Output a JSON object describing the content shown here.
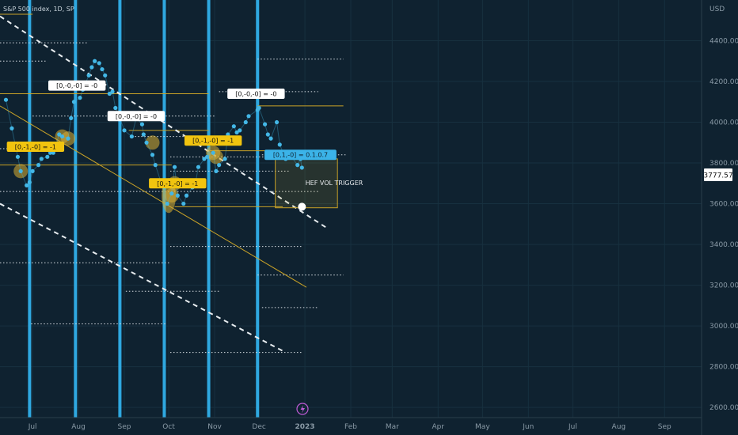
{
  "header": {
    "symbol": "S&P 500 index, 1D, SP"
  },
  "axis": {
    "currency": "USD",
    "last_price": "3777.57"
  },
  "colors": {
    "bg": "#0f2230",
    "cycle": "#2fa8e0",
    "price": "#43b7e6",
    "trend": "#c9a227",
    "label_yellow": "#f1c40f",
    "label_blue": "#3bb3e8"
  },
  "chart_data": {
    "type": "line",
    "x_ticks": [
      "Jul",
      "Aug",
      "Sep",
      "Oct",
      "Nov",
      "Dec",
      "2023",
      "Feb",
      "Mar",
      "Apr",
      "May",
      "Jun",
      "Jul",
      "Aug",
      "Sep"
    ],
    "y_ticks": [
      2600,
      2800,
      3000,
      3200,
      3400,
      3600,
      3800,
      4000,
      4200,
      4400
    ],
    "ylim": [
      2550,
      4600
    ],
    "xlim": [
      "2022-06-09",
      "2023-09-26"
    ],
    "series": [
      {
        "values": [
          [
            "2022-06-13",
            4110
          ],
          [
            "2022-06-17",
            3970
          ],
          [
            "2022-06-21",
            3830
          ],
          [
            "2022-06-23",
            3760
          ],
          [
            "2022-06-27",
            3690
          ],
          [
            "2022-06-29",
            3705
          ],
          [
            "2022-07-01",
            3760
          ],
          [
            "2022-07-05",
            3790
          ],
          [
            "2022-07-07",
            3820
          ],
          [
            "2022-07-11",
            3830
          ],
          [
            "2022-07-13",
            3850
          ],
          [
            "2022-07-15",
            3850
          ],
          [
            "2022-07-19",
            3940
          ],
          [
            "2022-07-21",
            3930
          ],
          [
            "2022-07-25",
            3920
          ],
          [
            "2022-07-27",
            4020
          ],
          [
            "2022-07-29",
            4100
          ],
          [
            "2022-08-02",
            4120
          ],
          [
            "2022-08-04",
            4160
          ],
          [
            "2022-08-08",
            4230
          ],
          [
            "2022-08-10",
            4270
          ],
          [
            "2022-08-12",
            4300
          ],
          [
            "2022-08-15",
            4290
          ],
          [
            "2022-08-17",
            4260
          ],
          [
            "2022-08-19",
            4230
          ],
          [
            "2022-08-22",
            4140
          ],
          [
            "2022-08-24",
            4150
          ],
          [
            "2022-08-26",
            4070
          ],
          [
            "2022-08-29",
            4020
          ],
          [
            "2022-09-01",
            3960
          ],
          [
            "2022-09-06",
            3930
          ],
          [
            "2022-09-09",
            4020
          ],
          [
            "2022-09-13",
            3990
          ],
          [
            "2022-09-14",
            3940
          ],
          [
            "2022-09-16",
            3900
          ],
          [
            "2022-09-20",
            3840
          ],
          [
            "2022-09-22",
            3790
          ],
          [
            "2022-09-26",
            3700
          ],
          [
            "2022-09-28",
            3680
          ],
          [
            "2022-09-30",
            3600
          ],
          [
            "2022-10-03",
            3650
          ],
          [
            "2022-10-05",
            3780
          ],
          [
            "2022-10-07",
            3640
          ],
          [
            "2022-10-11",
            3600
          ],
          [
            "2022-10-13",
            3640
          ],
          [
            "2022-10-17",
            3680
          ],
          [
            "2022-10-19",
            3700
          ],
          [
            "2022-10-21",
            3780
          ],
          [
            "2022-10-25",
            3820
          ],
          [
            "2022-10-27",
            3830
          ],
          [
            "2022-10-31",
            3850
          ],
          [
            "2022-11-02",
            3760
          ],
          [
            "2022-11-04",
            3790
          ],
          [
            "2022-11-08",
            3820
          ],
          [
            "2022-11-10",
            3940
          ],
          [
            "2022-11-14",
            3980
          ],
          [
            "2022-11-16",
            3950
          ],
          [
            "2022-11-18",
            3960
          ],
          [
            "2022-11-22",
            4000
          ],
          [
            "2022-11-24",
            4030
          ],
          [
            "2022-11-30",
            4060
          ],
          [
            "2022-12-01",
            4070
          ],
          [
            "2022-12-05",
            3990
          ],
          [
            "2022-12-07",
            3940
          ],
          [
            "2022-12-09",
            3920
          ],
          [
            "2022-12-13",
            4000
          ],
          [
            "2022-12-15",
            3890
          ],
          [
            "2022-12-19",
            3820
          ],
          [
            "2022-12-21",
            3850
          ],
          [
            "2022-12-23",
            3830
          ],
          [
            "2022-12-27",
            3790
          ],
          [
            "2022-12-29",
            3820
          ],
          [
            "2022-12-30",
            3777
          ]
        ]
      }
    ],
    "cycle_dates": [
      "2022-06-29",
      "2022-07-30",
      "2022-08-29",
      "2022-09-28",
      "2022-10-28",
      "2022-11-30"
    ],
    "trend_lines": [
      {
        "style": "dashed-white",
        "from": [
          "2022-06-09",
          4520
        ],
        "to": [
          "2023-01-16",
          3480
        ]
      },
      {
        "style": "dashed-white",
        "from": [
          "2022-06-09",
          3600
        ],
        "to": [
          "2022-12-19",
          2870
        ]
      },
      {
        "style": "solid-yellow",
        "from": [
          "2022-06-09",
          4080
        ],
        "to": [
          "2023-01-02",
          3190
        ]
      }
    ],
    "levels": [
      {
        "y": 4530,
        "from": "2022-06-09",
        "to": "2022-07-01",
        "style": "solid"
      },
      {
        "y": 4390,
        "from": "2022-06-09",
        "to": "2022-08-07",
        "style": "dotted"
      },
      {
        "y": 4310,
        "from": "2022-11-30",
        "to": "2023-01-27",
        "style": "dotted"
      },
      {
        "y": 4300,
        "from": "2022-06-09",
        "to": "2022-07-10",
        "style": "dotted"
      },
      {
        "y": 4140,
        "from": "2022-06-09",
        "to": "2022-10-28",
        "style": "solid"
      },
      {
        "y": 4150,
        "from": "2022-11-04",
        "to": "2023-01-10",
        "style": "dotted"
      },
      {
        "y": 4080,
        "from": "2022-11-30",
        "to": "2023-01-27",
        "style": "solid"
      },
      {
        "y": 4030,
        "from": "2022-07-01",
        "to": "2022-11-02",
        "style": "dotted"
      },
      {
        "y": 3960,
        "from": "2022-09-04",
        "to": "2022-10-28",
        "style": "solid"
      },
      {
        "y": 3930,
        "from": "2022-09-06",
        "to": "2022-10-28",
        "style": "dotted"
      },
      {
        "y": 3870,
        "from": "2022-06-09",
        "to": "2022-07-05",
        "style": "dotted"
      },
      {
        "y": 3860,
        "from": "2022-10-26",
        "to": "2023-01-10",
        "style": "solid"
      },
      {
        "y": 3830,
        "from": "2022-10-02",
        "to": "2022-12-17",
        "style": "dotted"
      },
      {
        "y": 3840,
        "from": "2022-12-03",
        "to": "2023-01-29",
        "style": "dotted"
      },
      {
        "y": 3790,
        "from": "2022-06-09",
        "to": "2022-10-03",
        "style": "solid"
      },
      {
        "y": 3760,
        "from": "2022-10-02",
        "to": "2022-12-21",
        "style": "dotted"
      },
      {
        "y": 3660,
        "from": "2022-06-09",
        "to": "2023-01-10",
        "style": "dotted"
      },
      {
        "y": 3585,
        "from": "2022-10-05",
        "to": "2022-12-17",
        "style": "solid"
      },
      {
        "y": 3390,
        "from": "2022-10-02",
        "to": "2022-12-30",
        "style": "dotted"
      },
      {
        "y": 3310,
        "from": "2022-06-09",
        "to": "2022-10-02",
        "style": "dotted"
      },
      {
        "y": 3250,
        "from": "2022-11-30",
        "to": "2023-01-27",
        "style": "dotted"
      },
      {
        "y": 3170,
        "from": "2022-09-02",
        "to": "2022-11-04",
        "style": "dotted"
      },
      {
        "y": 3090,
        "from": "2022-12-03",
        "to": "2023-01-10",
        "style": "dotted"
      },
      {
        "y": 3010,
        "from": "2022-06-30",
        "to": "2022-09-30",
        "style": "dotted"
      },
      {
        "y": 2870,
        "from": "2022-10-02",
        "to": "2022-12-30",
        "style": "dotted"
      }
    ],
    "zone": {
      "label": "HEF VOL TRIGGER",
      "x0": "2022-12-12",
      "x1": "2023-01-23",
      "y0": 3580,
      "y1": 3820
    },
    "marker": {
      "date": "2022-12-30",
      "value": 3585
    },
    "annotations": [
      {
        "text": "[0,-1,-0] = -1",
        "style": "yellow",
        "date": "2022-07-03",
        "value": 3880
      },
      {
        "text": "[0,-0,-0] = -0",
        "style": "white",
        "date": "2022-07-31",
        "value": 4180
      },
      {
        "text": "[0,-0,-0] = -0",
        "style": "white",
        "date": "2022-09-09",
        "value": 4030
      },
      {
        "text": "[0,-1,-0] = -1",
        "style": "yellow",
        "date": "2022-10-07",
        "value": 3700
      },
      {
        "text": "[0,-1,-0] = -1",
        "style": "yellow",
        "date": "2022-10-31",
        "value": 3910
      },
      {
        "text": "[0,-0,-0] = -0",
        "style": "white",
        "date": "2022-11-29",
        "value": 4140
      },
      {
        "text": "[0,1,-0] = 0.1.0.7",
        "style": "blue",
        "date": "2022-12-29",
        "value": 3840
      }
    ]
  }
}
